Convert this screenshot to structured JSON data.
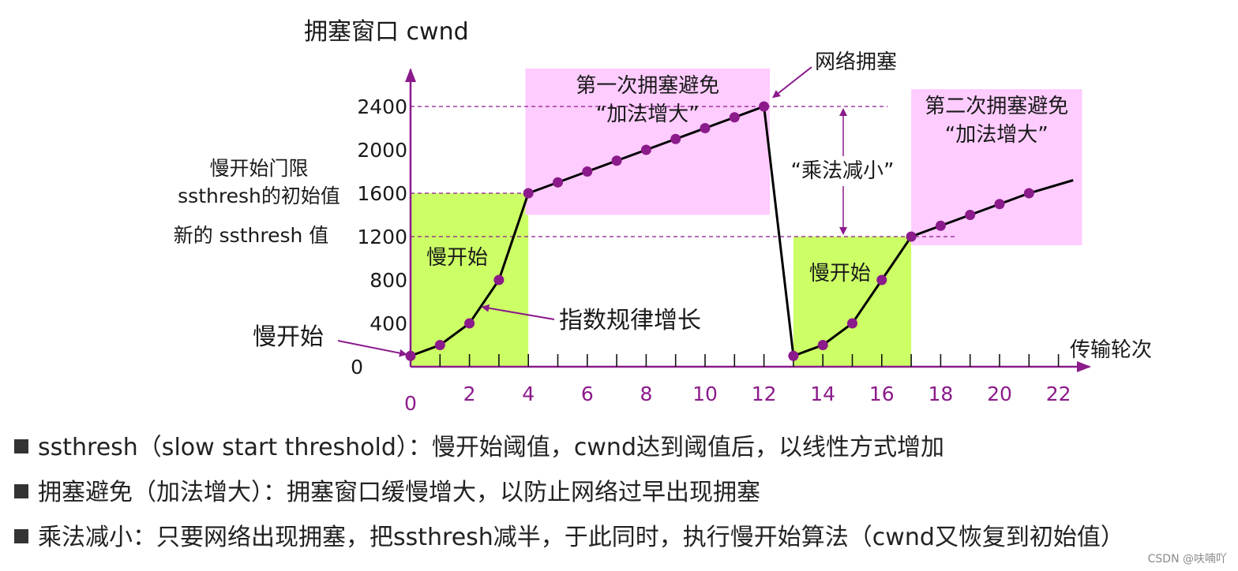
{
  "chart_data": {
    "type": "line",
    "title": "",
    "ylabel": "拥塞窗口 cwnd",
    "xlabel": "传输轮次",
    "x_ticks": [
      0,
      2,
      4,
      6,
      8,
      10,
      12,
      14,
      16,
      18,
      20,
      22
    ],
    "y_ticks": [
      0,
      400,
      800,
      1200,
      1600,
      2000,
      2400
    ],
    "xlim": [
      0,
      22
    ],
    "ylim": [
      0,
      2400
    ],
    "series": [
      {
        "points": [
          [
            0,
            100
          ],
          [
            1,
            200
          ],
          [
            2,
            400
          ],
          [
            3,
            800
          ],
          [
            4,
            1600
          ],
          [
            5,
            1700
          ],
          [
            6,
            1800
          ],
          [
            7,
            1900
          ],
          [
            8,
            2000
          ],
          [
            9,
            2100
          ],
          [
            10,
            2200
          ],
          [
            11,
            2300
          ],
          [
            12,
            2400
          ],
          [
            13,
            100
          ],
          [
            14,
            200
          ],
          [
            15,
            400
          ],
          [
            16,
            800
          ],
          [
            17,
            1200
          ],
          [
            18,
            1300
          ],
          [
            19,
            1400
          ],
          [
            20,
            1500
          ],
          [
            21,
            1600
          ]
        ],
        "continues_to": [
          22.5,
          1720
        ]
      }
    ],
    "reference_lines": [
      {
        "y": 2400,
        "x_range": [
          0,
          16.2
        ]
      },
      {
        "y": 1600,
        "x_range": [
          0,
          4
        ]
      },
      {
        "y": 1200,
        "x_range": [
          0,
          18.5
        ]
      }
    ],
    "regions": [
      {
        "kind": "slow-start",
        "color": "#ccff66",
        "x_range": [
          0,
          4
        ],
        "y_range": [
          0,
          1600
        ],
        "label_lines": [
          "慢开始"
        ]
      },
      {
        "kind": "avoidance",
        "color": "#ffccff",
        "x_range": [
          3.9,
          12.2
        ],
        "y_range": [
          1400,
          2750
        ],
        "label_lines": [
          "第一次拥塞避免",
          "“加法增大”"
        ]
      },
      {
        "kind": "slow-start",
        "color": "#ccff66",
        "x_range": [
          13,
          17
        ],
        "y_range": [
          0,
          1200
        ],
        "label_lines": [
          "慢开始"
        ]
      },
      {
        "kind": "avoidance",
        "color": "#ffccff",
        "x_range": [
          17,
          22.8
        ],
        "y_range": [
          1120,
          2560
        ],
        "label_lines": [
          "第二次拥塞避免",
          "“加法增大”"
        ]
      }
    ],
    "annotations": {
      "ssthresh_initial": [
        "慢开始门限",
        "ssthresh的初始值"
      ],
      "ssthresh_new": "新的 ssthresh 值",
      "slow_start_pointer": "慢开始",
      "exponential": "指数规律增长",
      "congestion": "网络拥塞",
      "multiplicative": "“乘法减小”"
    },
    "colors": {
      "axis": "#8b1a8b",
      "marker": "#8b1a8b",
      "line": "#000000",
      "slow_start_fill": "#ccff66",
      "avoidance_fill": "#ffccff",
      "text": "#1a1a1a"
    },
    "grid": false,
    "legend": "none"
  },
  "bullets": [
    "ssthresh（slow start threshold）：慢开始阈值，cwnd达到阈值后，以线性方式增加",
    "拥塞避免（加法增大）：拥塞窗口缓慢增大，以防止网络过早出现拥塞",
    "乘法减小：只要网络出现拥塞，把ssthresh减半，于此同时，执行慢开始算法（cwnd又恢复到初始值）"
  ],
  "watermark": "CSDN @呋喃吖"
}
